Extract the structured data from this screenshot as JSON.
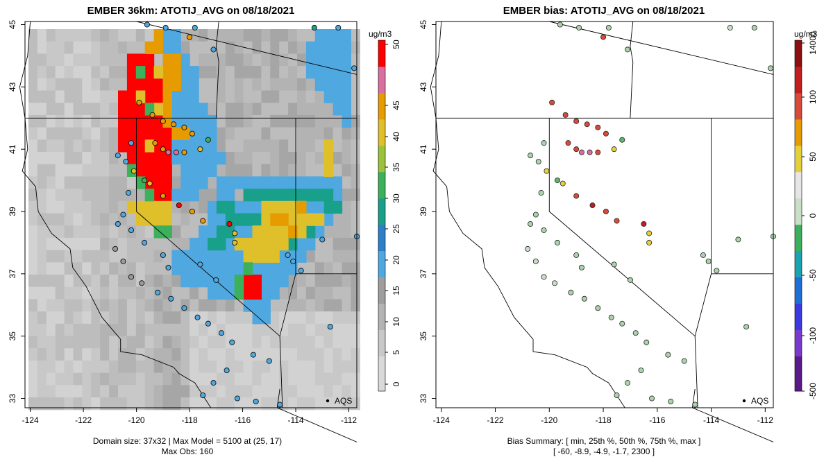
{
  "chart_data": [
    {
      "type": "heatmap",
      "title": "EMBER 36km: ATOTIJ_AVG on 08/18/2021",
      "x_ticks": [
        "-124",
        "-122",
        "-120",
        "-118",
        "-116",
        "-114",
        "-112"
      ],
      "y_ticks": [
        "33",
        "35",
        "37",
        "39",
        "41",
        "43",
        "45"
      ],
      "xlim": [
        -124.2,
        -111.7
      ],
      "ylim": [
        32.7,
        45.1
      ],
      "colorbar": {
        "unit": "ug/m3",
        "ticks": [
          "0",
          "5",
          "10",
          "15",
          "20",
          "25",
          "30",
          "35",
          "40",
          "45",
          "50"
        ],
        "range": [
          -2,
          51
        ]
      },
      "legend_label": "AQS",
      "footer_line1": "Domain size: 37x32 | Max Model = 5100 at (25, 17)",
      "footer_line2": "Max Obs: 160"
    },
    {
      "type": "scatter",
      "title": "EMBER bias: ATOTIJ_AVG on 08/18/2021",
      "x_ticks": [
        "-124",
        "-122",
        "-120",
        "-118",
        "-116",
        "-114",
        "-112"
      ],
      "y_ticks": [
        "33",
        "35",
        "37",
        "39",
        "41",
        "43",
        "45"
      ],
      "xlim": [
        -124.2,
        -111.7
      ],
      "ylim": [
        32.7,
        45.1
      ],
      "colorbar": {
        "unit": "ug/m3",
        "ticks": [
          "-500",
          "-100",
          "-50",
          "0",
          "50",
          "100",
          "14000"
        ]
      },
      "legend_label": "AQS",
      "footer_line1": "Bias Summary: [ min, 25th %, 50th %, 75th %, max ]",
      "footer_line2": "[ -60,   -8.9,   -4.9,   -1.7,   2300 ]",
      "bias_summary": {
        "min": -60,
        "p25": -8.9,
        "p50": -4.9,
        "p75": -1.7,
        "max": 2300
      }
    }
  ]
}
